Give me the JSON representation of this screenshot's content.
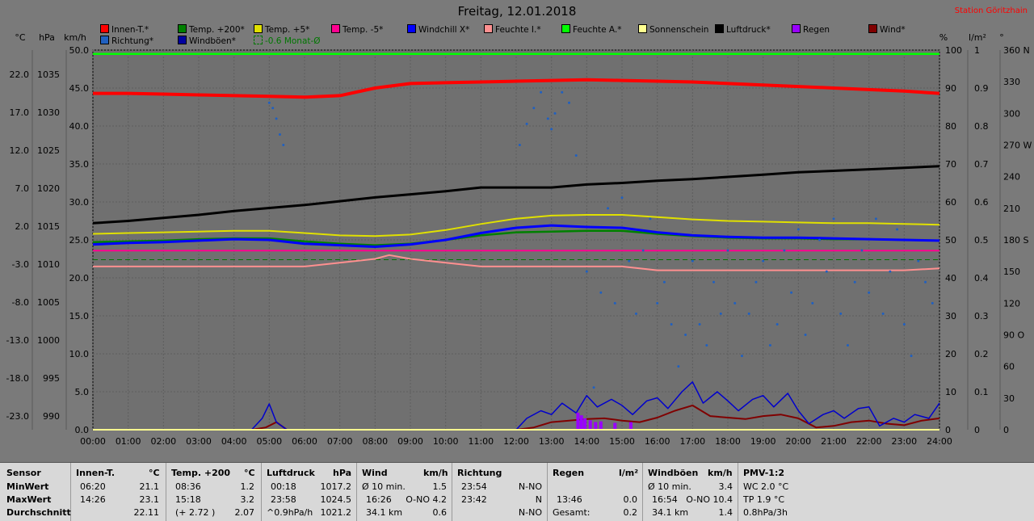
{
  "title": "Freitag, 12.01.2018",
  "station": "Station Göritzhain",
  "legend": [
    {
      "label": "Innen-T.*",
      "color": "#ff0000"
    },
    {
      "label": "Temp. +200*",
      "color": "#008000"
    },
    {
      "label": "Temp. +5*",
      "color": "#e0e000"
    },
    {
      "label": "Temp. -5*",
      "color": "#ff0090"
    },
    {
      "label": "Windchill X*",
      "color": "#0000ff"
    },
    {
      "label": "Feuchte I.*",
      "color": "#ff9090"
    },
    {
      "label": "Feuchte A.*",
      "color": "#00ff00"
    },
    {
      "label": "Sonnenschein",
      "color": "#ffff90"
    },
    {
      "label": "Luftdruck*",
      "color": "#000000"
    },
    {
      "label": "Regen",
      "color": "#9900ff"
    },
    {
      "label": "Wind*",
      "color": "#800000"
    },
    {
      "label": "Richtung*",
      "color": "#2060c0"
    },
    {
      "label": "Windböen*",
      "color": "#0000a0"
    },
    {
      "label": "-0.6 Monat-Ø",
      "color": "#007700",
      "dashed": true
    }
  ],
  "units": {
    "left1": "°C",
    "left2": "hPa",
    "left3": "km/h",
    "right1": "%",
    "right2": "l/m²",
    "right3": "°"
  },
  "chart_data": {
    "type": "line",
    "title": "Freitag, 12.01.2018",
    "x_ticks": [
      "00:00",
      "01:00",
      "02:00",
      "03:00",
      "04:00",
      "05:00",
      "06:00",
      "07:00",
      "08:00",
      "09:00",
      "10:00",
      "11:00",
      "12:00",
      "13:00",
      "14:00",
      "15:00",
      "16:00",
      "17:00",
      "18:00",
      "19:00",
      "20:00",
      "21:00",
      "22:00",
      "23:00",
      "24:00"
    ],
    "temp_ticks": [
      "22.0",
      "17.0",
      "12.0",
      "7.0",
      "2.0",
      "-3.0",
      "-8.0",
      "-13.0",
      "-18.0",
      "-23.0"
    ],
    "hpa_ticks": [
      "1035",
      "1030",
      "1025",
      "1020",
      "1015",
      "1010",
      "1005",
      "1000",
      "995",
      "990"
    ],
    "kmh_ticks": [
      "50.0",
      "45.0",
      "40.0",
      "35.0",
      "30.0",
      "25.0",
      "20.0",
      "15.0",
      "10.0",
      "5.0",
      "0.0"
    ],
    "pct_ticks": [
      "100",
      "90",
      "80",
      "70",
      "60",
      "50",
      "40",
      "30",
      "20",
      "10",
      "0"
    ],
    "rain_ticks": [
      "1",
      "0.9",
      "0.8",
      "0.7",
      "0.6",
      "0.5",
      "0.4",
      "0.3",
      "0.2",
      "0.1",
      "0"
    ],
    "deg_ticks": [
      "360 N",
      "330",
      "300",
      "270 W",
      "240",
      "210",
      "180 S",
      "150",
      "120",
      "90 O",
      "60",
      "30",
      "0"
    ],
    "ylim_kmh": [
      0,
      50
    ],
    "monthly_avg_temp": -0.6,
    "series": [
      {
        "name": "Innen-T.*",
        "color": "#ff0000",
        "axis": "temp",
        "x": [
          0,
          1,
          2,
          3,
          4,
          5,
          6,
          7,
          8,
          9,
          10,
          11,
          12,
          13,
          14,
          15,
          16,
          17,
          18,
          19,
          20,
          21,
          22,
          23,
          24
        ],
        "values": [
          21.3,
          21.3,
          21.2,
          21.1,
          21.0,
          20.9,
          20.8,
          21.0,
          22.0,
          22.6,
          22.7,
          22.8,
          22.9,
          23.0,
          23.1,
          23.0,
          22.9,
          22.8,
          22.6,
          22.4,
          22.2,
          22.0,
          21.8,
          21.6,
          21.3
        ]
      },
      {
        "name": "Temp. +200*",
        "color": "#008000",
        "axis": "temp",
        "x": [
          0,
          1,
          2,
          3,
          4,
          5,
          6,
          7,
          8,
          9,
          10,
          11,
          12,
          13,
          14,
          15,
          16,
          17,
          18,
          19,
          20,
          21,
          22,
          23,
          24
        ],
        "values": [
          1.7,
          1.8,
          1.9,
          2.1,
          2.2,
          2.2,
          1.8,
          1.5,
          1.3,
          1.5,
          2.0,
          2.6,
          3.0,
          3.1,
          3.2,
          3.2,
          2.8,
          2.5,
          2.3,
          2.2,
          2.2,
          2.1,
          2.1,
          2.0,
          1.9
        ]
      },
      {
        "name": "Temp. +5*",
        "color": "#e0e000",
        "axis": "temp",
        "x": [
          0,
          1,
          2,
          3,
          4,
          5,
          6,
          7,
          8,
          9,
          10,
          11,
          12,
          13,
          14,
          15,
          16,
          17,
          18,
          19,
          20,
          21,
          22,
          23,
          24
        ],
        "values": [
          2.8,
          2.9,
          3.0,
          3.1,
          3.2,
          3.2,
          2.9,
          2.6,
          2.5,
          2.7,
          3.3,
          4.1,
          4.8,
          5.2,
          5.3,
          5.3,
          5.0,
          4.7,
          4.5,
          4.4,
          4.3,
          4.2,
          4.2,
          4.1,
          4.0
        ]
      },
      {
        "name": "Temp. -5*",
        "color": "#ff0090",
        "axis": "temp",
        "x": [
          0,
          24
        ],
        "values": [
          0.6,
          0.6
        ]
      },
      {
        "name": "Windchill X*",
        "color": "#0000ff",
        "axis": "temp",
        "x": [
          0,
          1,
          2,
          3,
          4,
          5,
          6,
          7,
          8,
          9,
          10,
          11,
          12,
          13,
          14,
          15,
          16,
          17,
          18,
          19,
          20,
          21,
          22,
          23,
          24
        ],
        "values": [
          1.4,
          1.6,
          1.7,
          1.9,
          2.1,
          2.0,
          1.5,
          1.3,
          1.1,
          1.4,
          2.0,
          2.9,
          3.6,
          3.9,
          3.7,
          3.6,
          3.0,
          2.6,
          2.4,
          2.3,
          2.3,
          2.2,
          2.1,
          2.0,
          1.9
        ]
      },
      {
        "name": "Feuchte I.*",
        "color": "#ff9090",
        "axis": "pct",
        "x": [
          0,
          2,
          4,
          6,
          7,
          8,
          8.4,
          9,
          10,
          11,
          12,
          13,
          14,
          15,
          16,
          17,
          18,
          19,
          20,
          21,
          22,
          23,
          24
        ],
        "values": [
          43,
          43,
          43,
          43,
          44,
          45,
          46,
          45,
          44,
          43,
          43,
          43,
          43,
          43,
          42,
          42,
          42,
          42,
          42,
          42,
          42,
          42,
          42.5
        ]
      },
      {
        "name": "Feuchte A.*",
        "color": "#00ff00",
        "axis": "pct",
        "x": [
          0,
          24
        ],
        "values": [
          99,
          99
        ]
      },
      {
        "name": "Luftdruck*",
        "color": "#000000",
        "axis": "hpa",
        "x": [
          0,
          1,
          2,
          3,
          4,
          5,
          6,
          7,
          8,
          9,
          10,
          11,
          12,
          13,
          14,
          15,
          16,
          17,
          18,
          19,
          20,
          21,
          22,
          23,
          24
        ],
        "values": [
          1017.2,
          1017.5,
          1017.9,
          1018.3,
          1018.8,
          1019.2,
          1019.6,
          1020.1,
          1020.6,
          1021.0,
          1021.4,
          1021.9,
          1021.9,
          1021.9,
          1022.3,
          1022.5,
          1022.8,
          1023.0,
          1023.3,
          1023.6,
          1023.9,
          1024.1,
          1024.3,
          1024.5,
          1024.7
        ]
      },
      {
        "name": "Wind*",
        "color": "#800000",
        "axis": "kmh",
        "x": [
          0,
          4.5,
          4.9,
          5.2,
          5.5,
          12,
          12.5,
          13,
          13.5,
          14,
          14.5,
          15,
          15.5,
          16,
          16.5,
          17,
          17.5,
          18,
          18.5,
          19,
          19.5,
          20,
          20.5,
          21,
          21.5,
          22,
          22.5,
          23,
          23.5,
          24
        ],
        "values": [
          0,
          0,
          0.3,
          1.0,
          0,
          0,
          0.3,
          1.0,
          1.2,
          1.4,
          1.5,
          1.2,
          1.0,
          1.6,
          2.5,
          3.2,
          1.8,
          1.6,
          1.4,
          1.8,
          2.0,
          1.5,
          0.3,
          0.5,
          1.0,
          1.2,
          0.8,
          0.6,
          1.2,
          1.5
        ]
      },
      {
        "name": "Windböen*",
        "color": "#0000cc",
        "axis": "kmh",
        "x": [
          0,
          4.5,
          4.8,
          5.0,
          5.2,
          5.5,
          12,
          12.3,
          12.7,
          13,
          13.3,
          13.7,
          14,
          14.3,
          14.7,
          15,
          15.3,
          15.7,
          16,
          16.3,
          16.7,
          17,
          17.3,
          17.7,
          18,
          18.3,
          18.7,
          19,
          19.3,
          19.7,
          20,
          20.3,
          20.7,
          21,
          21.3,
          21.7,
          22,
          22.3,
          22.7,
          23,
          23.3,
          23.7,
          24
        ],
        "values": [
          0,
          0,
          1.5,
          3.4,
          1.0,
          0,
          0,
          1.5,
          2.5,
          2.0,
          3.5,
          2.2,
          4.5,
          3.0,
          4.0,
          3.2,
          2.0,
          3.8,
          4.2,
          2.8,
          5.0,
          6.3,
          3.5,
          5.0,
          3.8,
          2.5,
          4.0,
          4.5,
          3.0,
          4.8,
          2.5,
          0.8,
          2.0,
          2.5,
          1.5,
          2.8,
          3.0,
          0.5,
          1.5,
          1.0,
          2.0,
          1.5,
          3.5
        ]
      },
      {
        "name": "Regen",
        "color": "#9900ff",
        "axis": "rain",
        "x": [
          13.75,
          13.85,
          13.95,
          14.1,
          14.25,
          14.4,
          14.8,
          15.25
        ],
        "values": [
          0.045,
          0.038,
          0.03,
          0.025,
          0.02,
          0.022,
          0.018,
          0.02
        ]
      },
      {
        "name": "Richtung*",
        "color": "#2060c0",
        "axis": "deg",
        "type": "scatter",
        "x": [
          5.0,
          5.1,
          5.2,
          5.3,
          5.4,
          12.1,
          12.3,
          12.5,
          12.7,
          12.9,
          13.0,
          13.1,
          13.3,
          13.5,
          13.7,
          14.0,
          14.2,
          14.4,
          14.6,
          14.8,
          15.0,
          15.2,
          15.4,
          15.6,
          15.8,
          16.0,
          16.2,
          16.4,
          16.6,
          16.8,
          17.0,
          17.2,
          17.4,
          17.6,
          17.8,
          18.0,
          18.2,
          18.4,
          18.6,
          18.8,
          19.0,
          19.2,
          19.4,
          19.6,
          19.8,
          20.0,
          20.2,
          20.4,
          20.6,
          20.8,
          21.0,
          21.2,
          21.4,
          21.6,
          21.8,
          22.0,
          22.2,
          22.4,
          22.6,
          22.8,
          23.0,
          23.2,
          23.4,
          23.6,
          23.8
        ],
        "values": [
          310,
          305,
          295,
          280,
          270,
          270,
          290,
          305,
          320,
          295,
          285,
          300,
          320,
          310,
          260,
          150,
          40,
          130,
          210,
          120,
          220,
          160,
          110,
          170,
          200,
          120,
          140,
          100,
          60,
          90,
          160,
          100,
          80,
          140,
          110,
          170,
          120,
          70,
          110,
          140,
          160,
          80,
          100,
          170,
          130,
          190,
          90,
          120,
          180,
          150,
          200,
          110,
          80,
          140,
          170,
          130,
          200,
          110,
          150,
          190,
          100,
          70,
          160,
          140,
          120
        ]
      }
    ]
  },
  "table": {
    "sensor": {
      "head": "Sensor",
      "rows": [
        "MinWert",
        "MaxWert",
        "Durchschnitt"
      ]
    },
    "innen": {
      "head": "Innen-T.",
      "unit": "°C",
      "t": [
        "06:20",
        "14:26",
        ""
      ],
      "v": [
        "21.1",
        "23.1",
        "22.11"
      ]
    },
    "temp200": {
      "head": "Temp. +200",
      "unit": "°C",
      "t": [
        "08:36",
        "15:18",
        "(+ 2.72 )"
      ],
      "v": [
        "1.2",
        "3.2",
        "2.07"
      ]
    },
    "luftdruck": {
      "head": "Luftdruck",
      "unit": "hPa",
      "t": [
        "00:18",
        "23:58",
        "^0.9hPa/h"
      ],
      "v": [
        "1017.2",
        "1024.5",
        "1021.2"
      ]
    },
    "wind": {
      "head": "Wind",
      "unit": "km/h",
      "t": [
        "Ø 10 min.",
        "16:26",
        "34.1 km"
      ],
      "m": [
        "",
        "O-NO 4.2",
        ""
      ],
      "v": [
        "1.5",
        "",
        "0.6"
      ]
    },
    "richtung": {
      "head": "Richtung",
      "t": [
        "23:54",
        "23:42",
        ""
      ],
      "v": [
        "N-NO",
        "N",
        "N-NO"
      ]
    },
    "regen": {
      "head": "Regen",
      "unit": "l/m²",
      "t": [
        "",
        "13:46",
        "Gesamt:"
      ],
      "v": [
        "",
        "0.0",
        "0.2"
      ]
    },
    "boeen": {
      "head": "Windböen",
      "unit": "km/h",
      "t": [
        "Ø 10 min.",
        "16:54",
        "34.1 km"
      ],
      "m": [
        "",
        "O-NO 10.4",
        ""
      ],
      "v": [
        "3.4",
        "",
        "1.4"
      ]
    },
    "pmv": {
      "head": "PMV-1:2",
      "t": [
        "WC 2.0 °C",
        "TP 1.9 °C",
        "0.8hPa/3h"
      ]
    }
  }
}
